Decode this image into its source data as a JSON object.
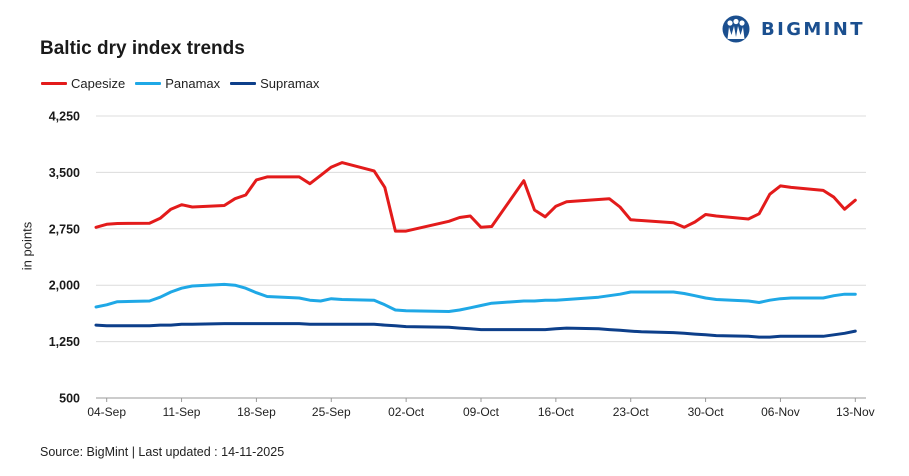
{
  "brand": {
    "name": "BIGMINT",
    "color": "#1b4f8f"
  },
  "source_text": "Source: BigMint | Last updated : 14-11-2025",
  "chart_data": {
    "type": "line",
    "title": "Baltic dry index trends",
    "ylabel": "in points",
    "xlabel": "",
    "ylim": [
      500,
      4250
    ],
    "yticks": [
      500,
      1250,
      2000,
      2750,
      3500,
      4250
    ],
    "ytick_labels": [
      "500",
      "1,250",
      "2,000",
      "2,750",
      "3,500",
      "4,250"
    ],
    "xlim": [
      "2025-09-03",
      "2025-11-14"
    ],
    "xticks": [
      "04-Sep",
      "11-Sep",
      "18-Sep",
      "25-Sep",
      "02-Oct",
      "09-Oct",
      "16-Oct",
      "23-Oct",
      "30-Oct",
      "06-Nov",
      "13-Nov"
    ],
    "grid": "horizontal",
    "legend": "top-left",
    "series": [
      {
        "name": "Capesize",
        "color": "#e31b1b",
        "points": [
          [
            "2025-09-03",
            2770
          ],
          [
            "2025-09-04",
            2810
          ],
          [
            "2025-09-05",
            2820
          ],
          [
            "2025-09-08",
            2825
          ],
          [
            "2025-09-09",
            2890
          ],
          [
            "2025-09-10",
            3010
          ],
          [
            "2025-09-11",
            3070
          ],
          [
            "2025-09-12",
            3040
          ],
          [
            "2025-09-15",
            3060
          ],
          [
            "2025-09-16",
            3150
          ],
          [
            "2025-09-17",
            3200
          ],
          [
            "2025-09-18",
            3400
          ],
          [
            "2025-09-19",
            3440
          ],
          [
            "2025-09-22",
            3440
          ],
          [
            "2025-09-23",
            3350
          ],
          [
            "2025-09-24",
            3460
          ],
          [
            "2025-09-25",
            3570
          ],
          [
            "2025-09-26",
            3630
          ],
          [
            "2025-09-29",
            3520
          ],
          [
            "2025-09-30",
            3300
          ],
          [
            "2025-10-01",
            2720
          ],
          [
            "2025-10-02",
            2720
          ],
          [
            "2025-10-06",
            2850
          ],
          [
            "2025-10-07",
            2900
          ],
          [
            "2025-10-08",
            2920
          ],
          [
            "2025-10-09",
            2770
          ],
          [
            "2025-10-10",
            2780
          ],
          [
            "2025-10-13",
            3390
          ],
          [
            "2025-10-14",
            3000
          ],
          [
            "2025-10-15",
            2910
          ],
          [
            "2025-10-16",
            3050
          ],
          [
            "2025-10-17",
            3110
          ],
          [
            "2025-10-20",
            3140
          ],
          [
            "2025-10-21",
            3150
          ],
          [
            "2025-10-22",
            3040
          ],
          [
            "2025-10-23",
            2870
          ],
          [
            "2025-10-24",
            2860
          ],
          [
            "2025-10-27",
            2830
          ],
          [
            "2025-10-28",
            2770
          ],
          [
            "2025-10-29",
            2840
          ],
          [
            "2025-10-30",
            2940
          ],
          [
            "2025-10-31",
            2920
          ],
          [
            "2025-11-03",
            2880
          ],
          [
            "2025-11-04",
            2950
          ],
          [
            "2025-11-05",
            3210
          ],
          [
            "2025-11-06",
            3320
          ],
          [
            "2025-11-07",
            3300
          ],
          [
            "2025-11-10",
            3260
          ],
          [
            "2025-11-11",
            3170
          ],
          [
            "2025-11-12",
            3010
          ],
          [
            "2025-11-13",
            3130
          ]
        ]
      },
      {
        "name": "Panamax",
        "color": "#1fa8e6",
        "points": [
          [
            "2025-09-03",
            1710
          ],
          [
            "2025-09-04",
            1740
          ],
          [
            "2025-09-05",
            1780
          ],
          [
            "2025-09-08",
            1790
          ],
          [
            "2025-09-09",
            1840
          ],
          [
            "2025-09-10",
            1910
          ],
          [
            "2025-09-11",
            1960
          ],
          [
            "2025-09-12",
            1990
          ],
          [
            "2025-09-15",
            2010
          ],
          [
            "2025-09-16",
            2000
          ],
          [
            "2025-09-17",
            1960
          ],
          [
            "2025-09-18",
            1900
          ],
          [
            "2025-09-19",
            1850
          ],
          [
            "2025-09-22",
            1830
          ],
          [
            "2025-09-23",
            1800
          ],
          [
            "2025-09-24",
            1790
          ],
          [
            "2025-09-25",
            1820
          ],
          [
            "2025-09-26",
            1810
          ],
          [
            "2025-09-29",
            1800
          ],
          [
            "2025-09-30",
            1740
          ],
          [
            "2025-10-01",
            1670
          ],
          [
            "2025-10-02",
            1660
          ],
          [
            "2025-10-06",
            1650
          ],
          [
            "2025-10-07",
            1670
          ],
          [
            "2025-10-08",
            1700
          ],
          [
            "2025-10-09",
            1730
          ],
          [
            "2025-10-10",
            1760
          ],
          [
            "2025-10-13",
            1790
          ],
          [
            "2025-10-14",
            1790
          ],
          [
            "2025-10-15",
            1800
          ],
          [
            "2025-10-16",
            1800
          ],
          [
            "2025-10-17",
            1810
          ],
          [
            "2025-10-20",
            1840
          ],
          [
            "2025-10-21",
            1860
          ],
          [
            "2025-10-22",
            1880
          ],
          [
            "2025-10-23",
            1910
          ],
          [
            "2025-10-24",
            1910
          ],
          [
            "2025-10-27",
            1910
          ],
          [
            "2025-10-28",
            1890
          ],
          [
            "2025-10-29",
            1860
          ],
          [
            "2025-10-30",
            1830
          ],
          [
            "2025-10-31",
            1810
          ],
          [
            "2025-11-03",
            1790
          ],
          [
            "2025-11-04",
            1770
          ],
          [
            "2025-11-05",
            1800
          ],
          [
            "2025-11-06",
            1820
          ],
          [
            "2025-11-07",
            1830
          ],
          [
            "2025-11-10",
            1830
          ],
          [
            "2025-11-11",
            1860
          ],
          [
            "2025-11-12",
            1880
          ],
          [
            "2025-11-13",
            1880
          ]
        ]
      },
      {
        "name": "Supramax",
        "color": "#0d3f8a",
        "points": [
          [
            "2025-09-03",
            1470
          ],
          [
            "2025-09-04",
            1460
          ],
          [
            "2025-09-05",
            1460
          ],
          [
            "2025-09-08",
            1460
          ],
          [
            "2025-09-09",
            1470
          ],
          [
            "2025-09-10",
            1470
          ],
          [
            "2025-09-11",
            1480
          ],
          [
            "2025-09-12",
            1480
          ],
          [
            "2025-09-15",
            1490
          ],
          [
            "2025-09-16",
            1490
          ],
          [
            "2025-09-17",
            1490
          ],
          [
            "2025-09-18",
            1490
          ],
          [
            "2025-09-19",
            1490
          ],
          [
            "2025-09-22",
            1490
          ],
          [
            "2025-09-23",
            1480
          ],
          [
            "2025-09-24",
            1480
          ],
          [
            "2025-09-25",
            1480
          ],
          [
            "2025-09-26",
            1480
          ],
          [
            "2025-09-29",
            1480
          ],
          [
            "2025-09-30",
            1470
          ],
          [
            "2025-10-01",
            1460
          ],
          [
            "2025-10-02",
            1450
          ],
          [
            "2025-10-06",
            1440
          ],
          [
            "2025-10-07",
            1430
          ],
          [
            "2025-10-08",
            1420
          ],
          [
            "2025-10-09",
            1410
          ],
          [
            "2025-10-10",
            1410
          ],
          [
            "2025-10-13",
            1410
          ],
          [
            "2025-10-14",
            1410
          ],
          [
            "2025-10-15",
            1410
          ],
          [
            "2025-10-16",
            1420
          ],
          [
            "2025-10-17",
            1430
          ],
          [
            "2025-10-20",
            1420
          ],
          [
            "2025-10-21",
            1410
          ],
          [
            "2025-10-22",
            1400
          ],
          [
            "2025-10-23",
            1390
          ],
          [
            "2025-10-24",
            1380
          ],
          [
            "2025-10-27",
            1370
          ],
          [
            "2025-10-28",
            1360
          ],
          [
            "2025-10-29",
            1350
          ],
          [
            "2025-10-30",
            1340
          ],
          [
            "2025-10-31",
            1330
          ],
          [
            "2025-11-03",
            1320
          ],
          [
            "2025-11-04",
            1310
          ],
          [
            "2025-11-05",
            1310
          ],
          [
            "2025-11-06",
            1320
          ],
          [
            "2025-11-07",
            1320
          ],
          [
            "2025-11-10",
            1320
          ],
          [
            "2025-11-11",
            1340
          ],
          [
            "2025-11-12",
            1360
          ],
          [
            "2025-11-13",
            1390
          ]
        ]
      }
    ]
  }
}
